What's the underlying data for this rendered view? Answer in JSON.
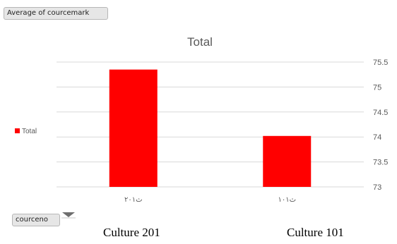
{
  "pivot": {
    "value_field": "Average of courcemark",
    "axis_field": "courceno"
  },
  "colors": {
    "bar": "#ff0000",
    "grid": "#d9d9d9",
    "text": "#595959"
  },
  "chart_data": {
    "type": "bar",
    "title": "Total",
    "categories": [
      "ث۲۰۱",
      "ث۱۰۱"
    ],
    "series": [
      {
        "name": "Total",
        "values": [
          75.35,
          74.02
        ]
      }
    ],
    "ylim": [
      73,
      75.5
    ],
    "yticks": [
      73,
      73.5,
      74,
      74.5,
      75,
      75.5
    ],
    "y_axis_side": "right",
    "legend_position": "left",
    "grid": true
  },
  "captions": [
    "Culture 201",
    "Culture 101"
  ]
}
